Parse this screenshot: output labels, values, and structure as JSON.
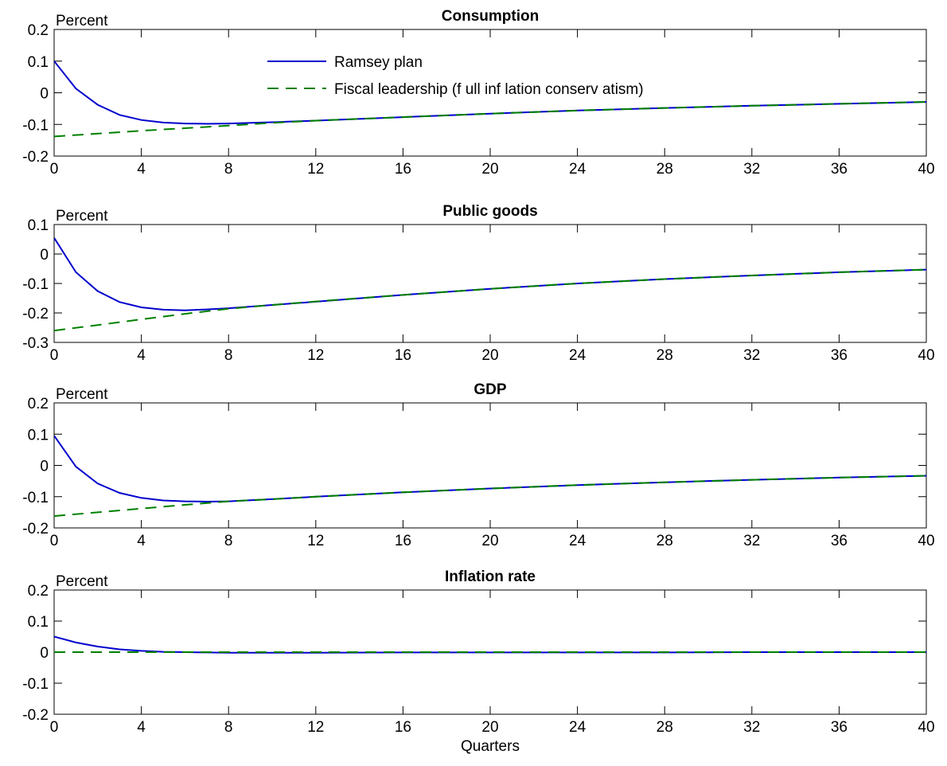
{
  "chart_data": [
    {
      "type": "line",
      "title": "Consumption",
      "ylabel": "Percent",
      "xlabel": "",
      "xlim": [
        0,
        40
      ],
      "ylim": [
        -0.2,
        0.2
      ],
      "xticks": [
        0,
        4,
        8,
        12,
        16,
        20,
        24,
        28,
        32,
        36,
        40
      ],
      "yticks": [
        -0.2,
        -0.1,
        0,
        0.1,
        0.2
      ],
      "ytick_labels": [
        "-0.2",
        "-0.1",
        "0",
        "0.1",
        "0.2"
      ],
      "grid": false,
      "legend": {
        "placement": "top-center",
        "entries": [
          "Ramsey plan",
          "Fiscal leadership (f ull inf lation conserv atism)"
        ]
      },
      "series": [
        {
          "name": "Ramsey plan",
          "color": "#0000cc",
          "style": "solid",
          "x": [
            0,
            1,
            2,
            3,
            4,
            5,
            6,
            7,
            8,
            10,
            12,
            16,
            20,
            24,
            28,
            32,
            36,
            40
          ],
          "y": [
            0.1,
            0.013,
            -0.038,
            -0.07,
            -0.086,
            -0.094,
            -0.097,
            -0.098,
            -0.097,
            -0.093,
            -0.088,
            -0.077,
            -0.066,
            -0.056,
            -0.048,
            -0.041,
            -0.035,
            -0.029
          ]
        },
        {
          "name": "Fiscal leadership (f ull inf lation conserv atism)",
          "color": "#008000",
          "style": "dashed",
          "x": [
            0,
            2,
            4,
            6,
            8,
            10,
            12,
            16,
            20,
            24,
            28,
            32,
            36,
            40
          ],
          "y": [
            -0.138,
            -0.129,
            -0.12,
            -0.112,
            -0.104,
            -0.095,
            -0.088,
            -0.077,
            -0.066,
            -0.056,
            -0.048,
            -0.041,
            -0.035,
            -0.029
          ]
        }
      ]
    },
    {
      "type": "line",
      "title": "Public goods",
      "ylabel": "Percent",
      "xlabel": "",
      "xlim": [
        0,
        40
      ],
      "ylim": [
        -0.3,
        0.1
      ],
      "xticks": [
        0,
        4,
        8,
        12,
        16,
        20,
        24,
        28,
        32,
        36,
        40
      ],
      "yticks": [
        -0.3,
        -0.2,
        -0.1,
        0,
        0.1
      ],
      "ytick_labels": [
        "-0.3",
        "-0.2",
        "-0.1",
        "0",
        "0.1"
      ],
      "grid": false,
      "series": [
        {
          "name": "Ramsey plan",
          "color": "#0000cc",
          "style": "solid",
          "x": [
            0,
            1,
            2,
            3,
            4,
            5,
            6,
            7,
            8,
            10,
            12,
            16,
            20,
            24,
            28,
            32,
            36,
            40
          ],
          "y": [
            0.055,
            -0.062,
            -0.126,
            -0.163,
            -0.181,
            -0.189,
            -0.191,
            -0.188,
            -0.184,
            -0.173,
            -0.162,
            -0.139,
            -0.118,
            -0.1,
            -0.085,
            -0.073,
            -0.062,
            -0.053
          ]
        },
        {
          "name": "Fiscal leadership (f ull inf lation conserv atism)",
          "color": "#008000",
          "style": "dashed",
          "x": [
            0,
            2,
            4,
            6,
            8,
            10,
            12,
            16,
            20,
            24,
            28,
            32,
            36,
            40
          ],
          "y": [
            -0.26,
            -0.241,
            -0.222,
            -0.203,
            -0.186,
            -0.173,
            -0.161,
            -0.139,
            -0.118,
            -0.1,
            -0.085,
            -0.073,
            -0.062,
            -0.053
          ]
        }
      ]
    },
    {
      "type": "line",
      "title": "GDP",
      "ylabel": "Percent",
      "xlabel": "",
      "xlim": [
        0,
        40
      ],
      "ylim": [
        -0.2,
        0.2
      ],
      "xticks": [
        0,
        4,
        8,
        12,
        16,
        20,
        24,
        28,
        32,
        36,
        40
      ],
      "yticks": [
        -0.2,
        -0.1,
        0,
        0.1,
        0.2
      ],
      "ytick_labels": [
        "-0.2",
        "-0.1",
        "0",
        "0.1",
        "0.2"
      ],
      "grid": false,
      "series": [
        {
          "name": "Ramsey plan",
          "color": "#0000cc",
          "style": "solid",
          "x": [
            0,
            1,
            2,
            3,
            4,
            5,
            6,
            7,
            8,
            10,
            12,
            16,
            20,
            24,
            28,
            32,
            36,
            40
          ],
          "y": [
            0.095,
            -0.004,
            -0.058,
            -0.088,
            -0.104,
            -0.112,
            -0.115,
            -0.116,
            -0.115,
            -0.108,
            -0.1,
            -0.086,
            -0.074,
            -0.063,
            -0.054,
            -0.046,
            -0.039,
            -0.033
          ]
        },
        {
          "name": "Fiscal leadership (f ull inf lation conserv atism)",
          "color": "#008000",
          "style": "dashed",
          "x": [
            0,
            2,
            4,
            6,
            8,
            10,
            12,
            16,
            20,
            24,
            28,
            32,
            36,
            40
          ],
          "y": [
            -0.162,
            -0.15,
            -0.138,
            -0.126,
            -0.115,
            -0.108,
            -0.1,
            -0.086,
            -0.074,
            -0.063,
            -0.054,
            -0.046,
            -0.039,
            -0.033
          ]
        }
      ]
    },
    {
      "type": "line",
      "title": "Inflation rate",
      "ylabel": "Percent",
      "xlabel": "Quarters",
      "xlim": [
        0,
        40
      ],
      "ylim": [
        -0.2,
        0.2
      ],
      "xticks": [
        0,
        4,
        8,
        12,
        16,
        20,
        24,
        28,
        32,
        36,
        40
      ],
      "yticks": [
        -0.2,
        -0.1,
        0,
        0.1,
        0.2
      ],
      "ytick_labels": [
        "-0.2",
        "-0.1",
        "0",
        "0.1",
        "0.2"
      ],
      "grid": false,
      "series": [
        {
          "name": "Ramsey plan",
          "color": "#0000cc",
          "style": "solid",
          "x": [
            0,
            1,
            2,
            3,
            4,
            5,
            6,
            7,
            8,
            10,
            12,
            16,
            20,
            24,
            28,
            32,
            36,
            40
          ],
          "y": [
            0.05,
            0.031,
            0.018,
            0.009,
            0.004,
            0.001,
            0.0,
            -0.001,
            -0.002,
            -0.002,
            -0.002,
            -0.001,
            -0.001,
            -0.001,
            -0.001,
            0.0,
            0.0,
            0.0
          ]
        },
        {
          "name": "Fiscal leadership (f ull inf lation conserv atism)",
          "color": "#008000",
          "style": "dashed",
          "x": [
            0,
            40
          ],
          "y": [
            0.0,
            0.0
          ]
        }
      ]
    }
  ]
}
